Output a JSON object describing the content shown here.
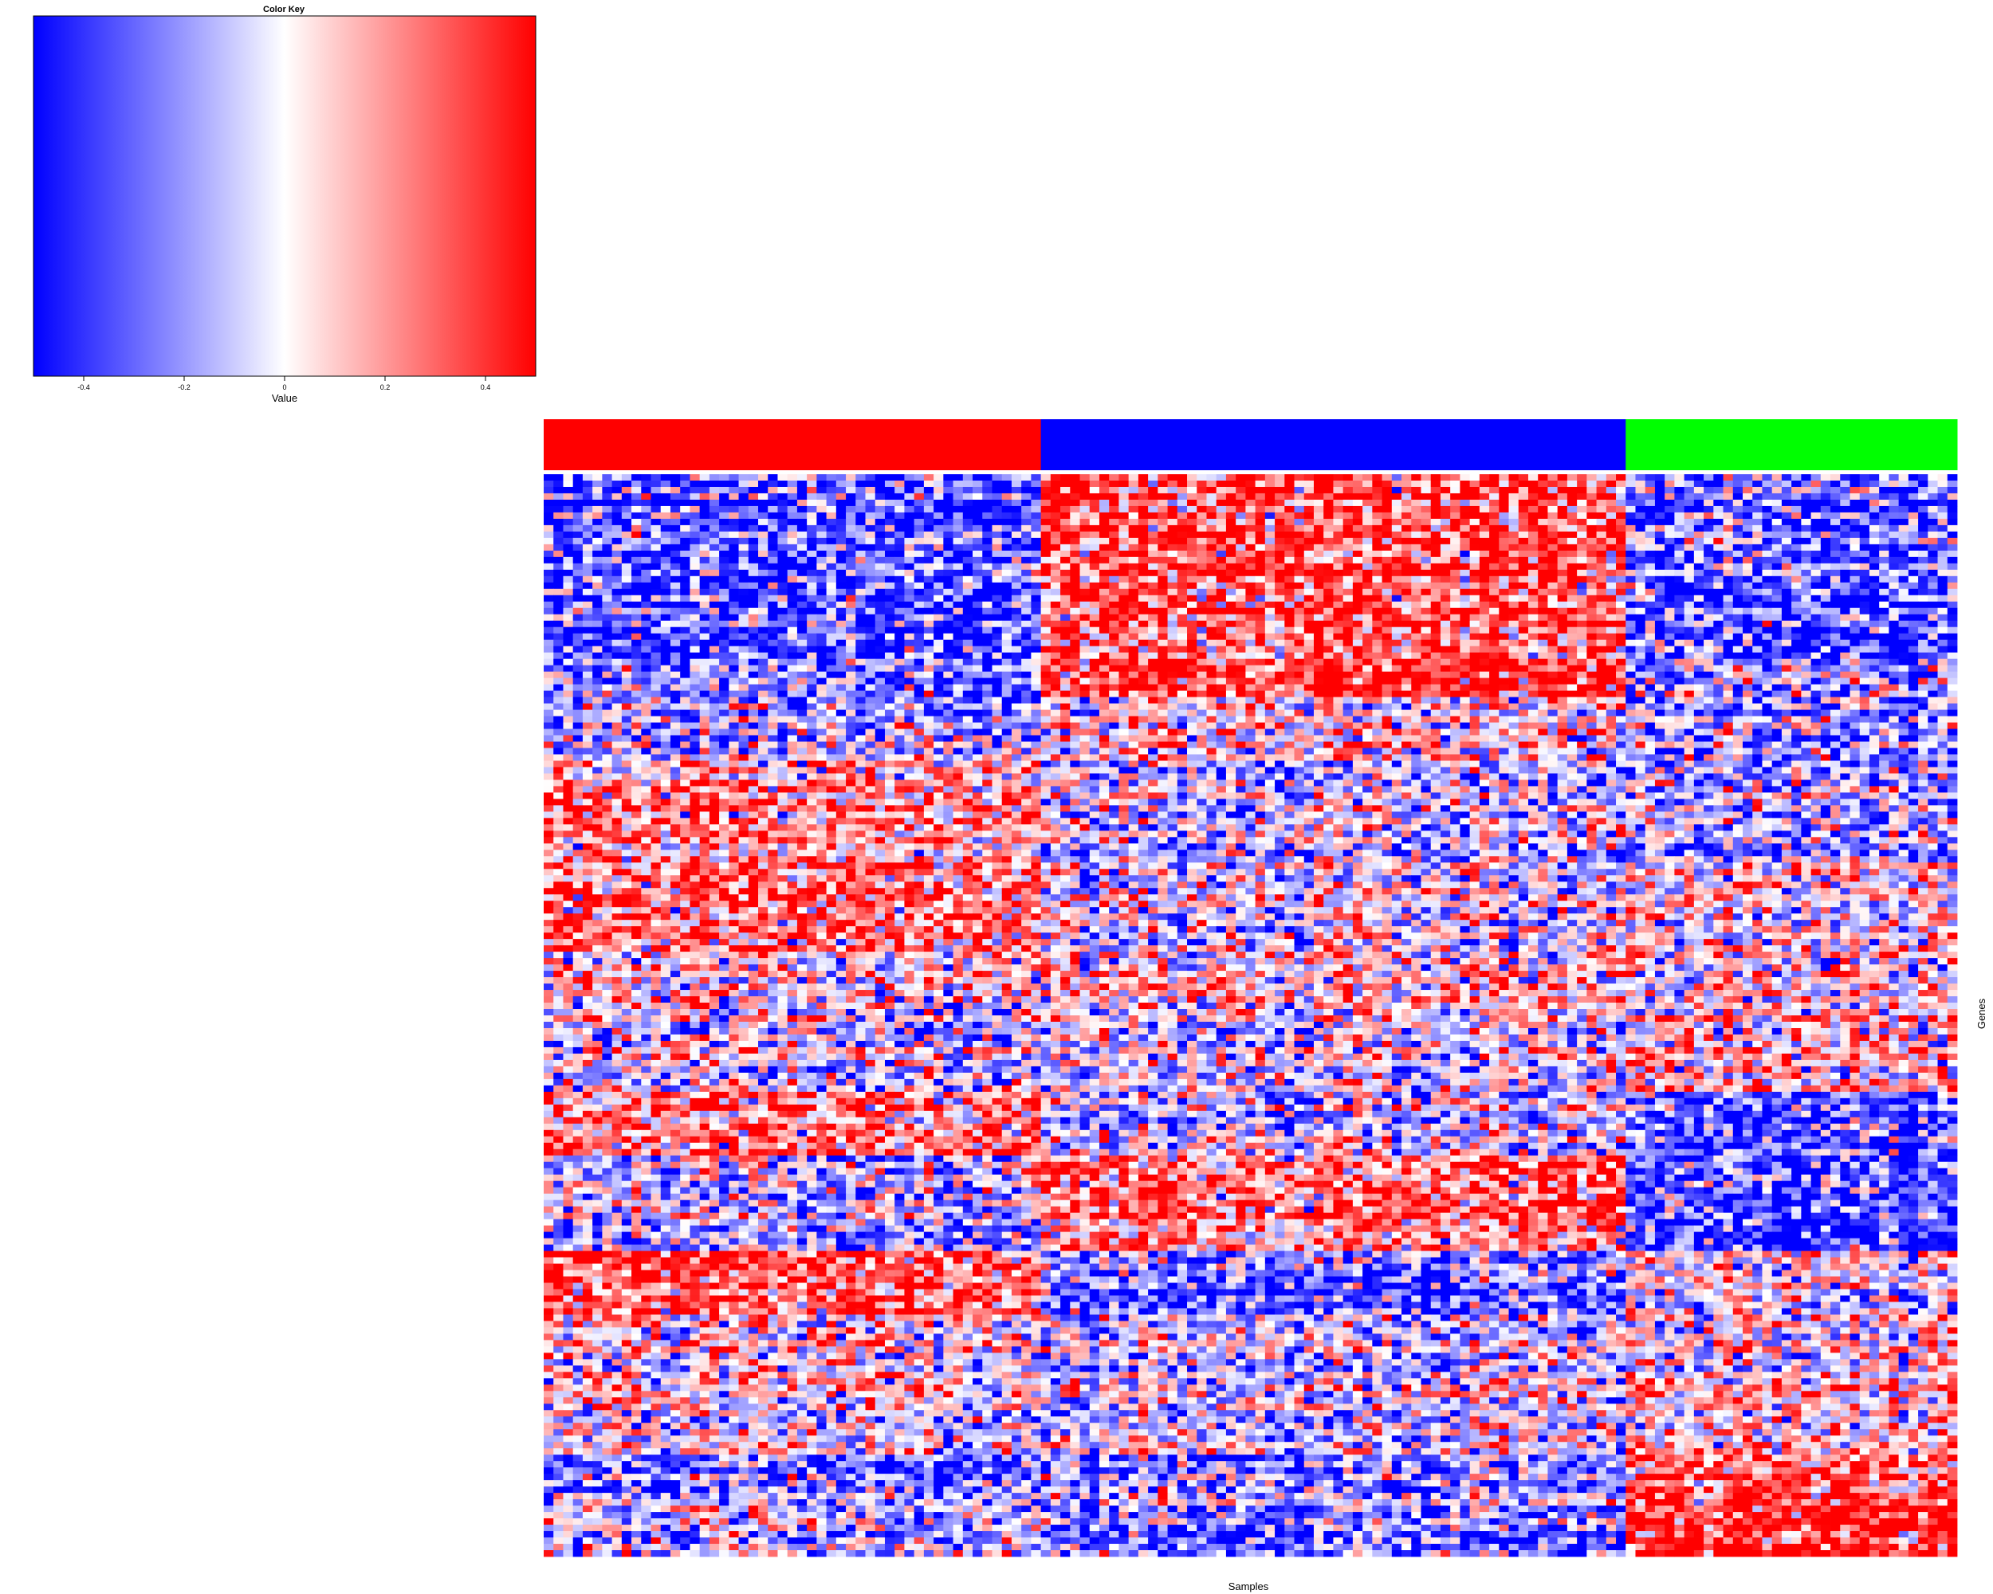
{
  "color_key": {
    "title": "Color Key",
    "xlabel": "Value",
    "ticks": [
      {
        "value": -0.4,
        "label": "-0.4"
      },
      {
        "value": -0.2,
        "label": "-0.2"
      },
      {
        "value": 0,
        "label": "0"
      },
      {
        "value": 0.2,
        "label": "0.2"
      },
      {
        "value": 0.4,
        "label": "0.4"
      }
    ],
    "range": [
      -0.5,
      0.5
    ],
    "low_color": "#0000ff",
    "mid_color": "#ffffff",
    "high_color": "#ff0000"
  },
  "chart_data": {
    "type": "heatmap",
    "xlabel": "Samples",
    "ylabel": "Genes",
    "n_columns": 145,
    "n_rows": 170,
    "value_range": [
      -0.5,
      0.5
    ],
    "column_groups": [
      {
        "color": "#ff0000",
        "count": 51
      },
      {
        "color": "#0000ff",
        "count": 60
      },
      {
        "color": "#00ff00",
        "count": 34
      }
    ],
    "gene_blocks": [
      {
        "rows": 35,
        "means": [
          -0.35,
          0.35,
          -0.3
        ]
      },
      {
        "rows": 10,
        "means": [
          -0.15,
          0.05,
          -0.2
        ]
      },
      {
        "rows": 15,
        "means": [
          0.15,
          -0.1,
          -0.2
        ]
      },
      {
        "rows": 15,
        "means": [
          0.25,
          -0.05,
          0.0
        ]
      },
      {
        "rows": 10,
        "means": [
          0.0,
          0.05,
          0.0
        ]
      },
      {
        "rows": 12,
        "means": [
          -0.05,
          -0.05,
          0.1
        ]
      },
      {
        "rows": 10,
        "means": [
          0.25,
          -0.05,
          -0.35
        ]
      },
      {
        "rows": 15,
        "means": [
          -0.15,
          0.25,
          -0.4
        ]
      },
      {
        "rows": 10,
        "means": [
          0.3,
          -0.3,
          -0.05
        ]
      },
      {
        "rows": 10,
        "means": [
          0.05,
          -0.1,
          0.0
        ]
      },
      {
        "rows": 12,
        "means": [
          0.0,
          -0.05,
          0.1
        ]
      },
      {
        "rows": 8,
        "means": [
          -0.25,
          -0.2,
          0.3
        ]
      },
      {
        "rows": 8,
        "means": [
          -0.1,
          -0.3,
          0.45
        ]
      }
    ]
  }
}
